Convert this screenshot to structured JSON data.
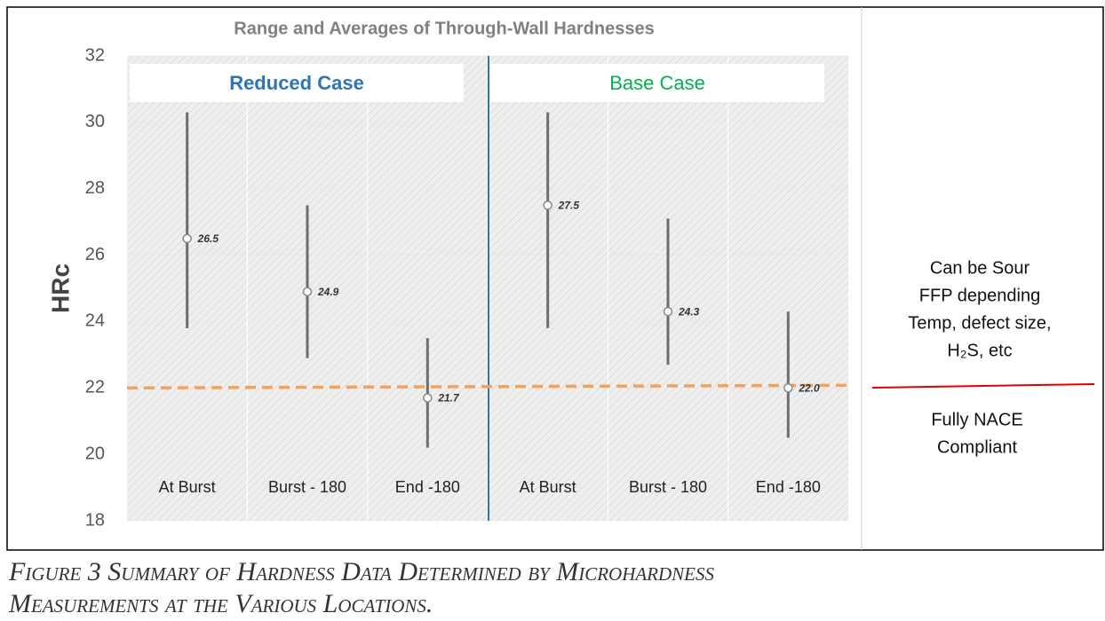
{
  "chart_data": {
    "type": "range",
    "title": "Range and Averages of Through-Wall Hardnesses",
    "ylabel": "HRc",
    "categories": [
      "At Burst",
      "Burst - 180",
      "End -180",
      "At Burst",
      "Burst - 180",
      "End -180"
    ],
    "values": [
      26.5,
      24.9,
      21.7,
      27.5,
      24.3,
      22.0
    ],
    "value_labels": [
      "26.5",
      "24.9",
      "21.7",
      "27.5",
      "24.3",
      "22.0"
    ],
    "high": [
      30.3,
      27.5,
      23.5,
      30.3,
      27.1,
      24.3
    ],
    "low": [
      23.8,
      22.9,
      20.2,
      23.8,
      22.7,
      20.5
    ],
    "color": "#6d6d6d",
    "groups": [
      {
        "label": "Reduced Case",
        "color": "#2e75b6"
      },
      {
        "label": "Base Case",
        "color": "#00b050"
      }
    ],
    "threshold": {
      "value": 22,
      "color": "#f4a15d"
    },
    "ylim": [
      18,
      32
    ],
    "yticks": [
      18,
      20,
      22,
      24,
      26,
      28,
      30,
      32
    ],
    "grid": true,
    "annotations": {
      "above": [
        "Can be Sour",
        "FFP depending",
        "Temp, defect size,",
        "H₂S, etc"
      ],
      "below": [
        "Fully NACE",
        "Compliant"
      ],
      "line_color": "#e00000"
    }
  },
  "caption": [
    "Figure 3   Summary of Hardness Data Determined by Microhardness",
    "Measurements at the Various Locations."
  ]
}
